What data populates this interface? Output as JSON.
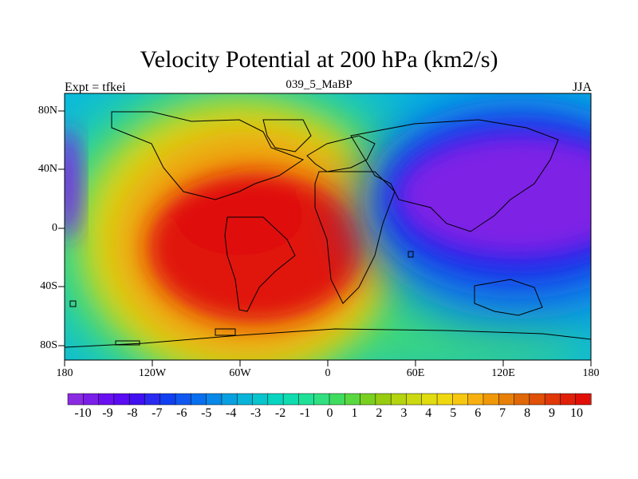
{
  "title": "Velocity Potential at 200 hPa (km2/s)",
  "subtitle_left": "Expt = tfkei",
  "subtitle_center": "039_5_MaBP",
  "subtitle_right": "JJA",
  "lat_labels": [
    "80N",
    "40N",
    "0",
    "40S",
    "80S"
  ],
  "lon_labels": [
    "180",
    "120W",
    "60W",
    "0",
    "60E",
    "120E",
    "180"
  ],
  "colorbar": {
    "labels": [
      "-10",
      "-9",
      "-8",
      "-7",
      "-6",
      "-5",
      "-4",
      "-3",
      "-2",
      "-1",
      "0",
      "1",
      "2",
      "3",
      "4",
      "5",
      "6",
      "7",
      "8",
      "9",
      "10"
    ],
    "colors": [
      "#8a2be2",
      "#7a1ee8",
      "#6a0ff0",
      "#5a0cf2",
      "#4010f0",
      "#2a2af0",
      "#1040f0",
      "#1058f0",
      "#0870ee",
      "#0888e8",
      "#08a0e0",
      "#08b4d8",
      "#08c4cc",
      "#08d4c0",
      "#10dcb0",
      "#20e098",
      "#30e080",
      "#40dc60",
      "#5ad840",
      "#7ad020",
      "#98cc10",
      "#b4d410",
      "#ccd810",
      "#e0dc10",
      "#f0d810",
      "#f8c810",
      "#f8b010",
      "#f09808",
      "#e88008",
      "#e06808",
      "#e05008",
      "#e03808",
      "#e02008",
      "#e01008"
    ]
  },
  "field_colors": {
    "min": "#7e22e6",
    "deep_blue": "#1818e8",
    "mid_blue": "#0878e8",
    "cyan": "#08c0e0",
    "green": "#40d870",
    "yellow": "#e8dc10",
    "orange": "#f0a010",
    "max": "#e01008"
  }
}
